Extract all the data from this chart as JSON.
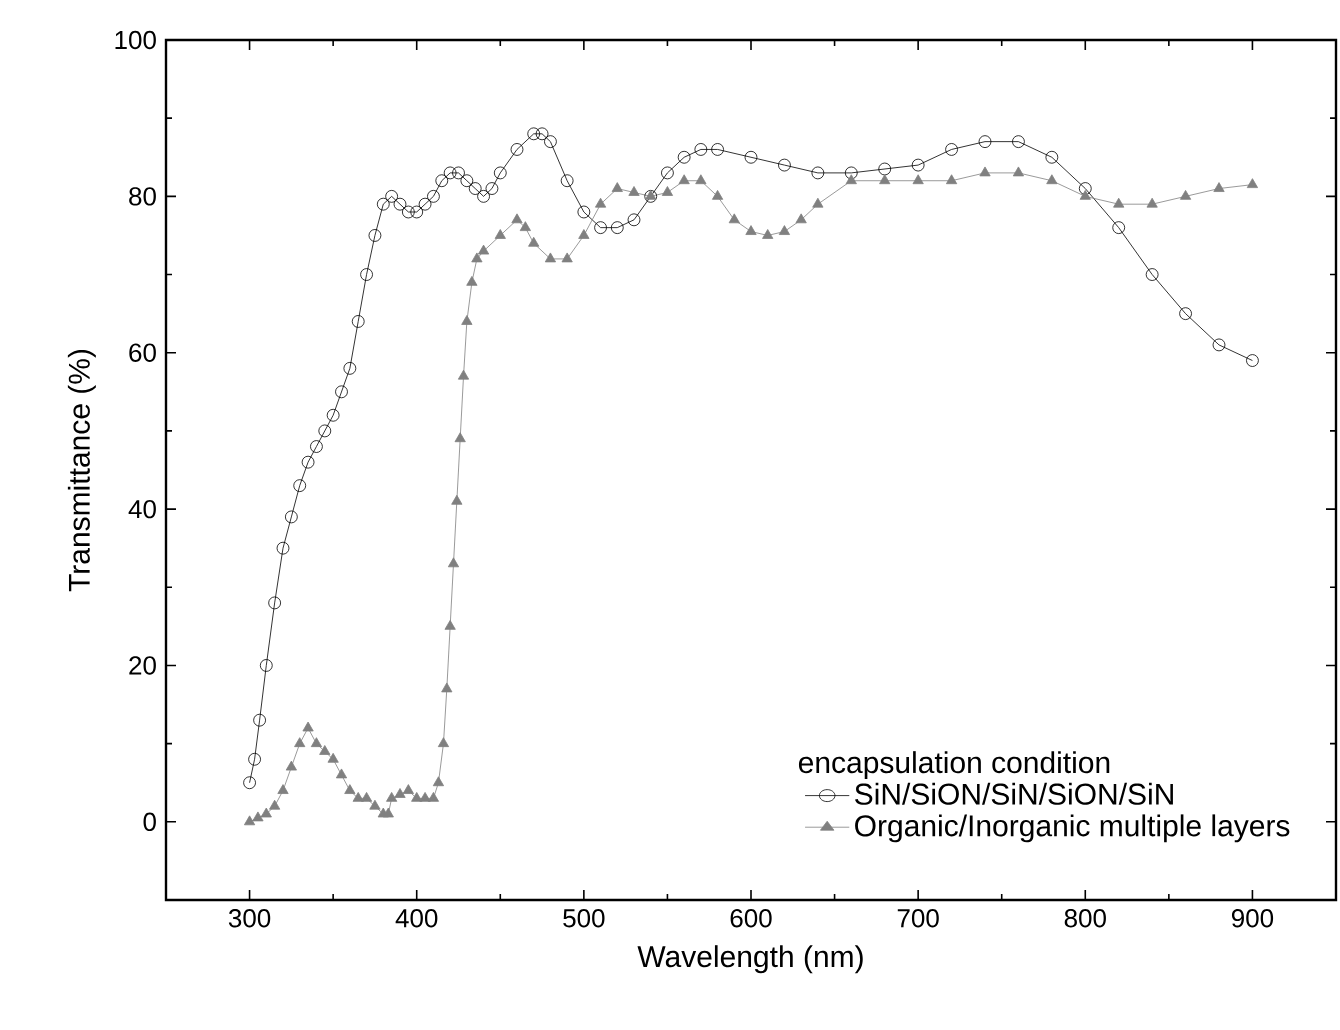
{
  "chart_data": {
    "type": "line",
    "xlabel": "Wavelength (nm)",
    "ylabel": "Transmittance (%)",
    "legend_title": "encapsulation condition",
    "legend": "bottom right",
    "grid": false,
    "xlim": [
      250,
      950
    ],
    "ylim": [
      -10,
      100
    ],
    "xticks": [
      300,
      400,
      500,
      600,
      700,
      800,
      900
    ],
    "yticks": [
      0,
      20,
      40,
      60,
      80,
      100
    ],
    "series": [
      {
        "name": "SiN/SiON/SiN/SiON/SiN",
        "color": "#000000",
        "marker": "circle",
        "x": [
          300,
          303,
          306,
          310,
          315,
          320,
          325,
          330,
          335,
          340,
          345,
          350,
          355,
          360,
          365,
          370,
          375,
          380,
          385,
          390,
          395,
          400,
          405,
          410,
          415,
          420,
          425,
          430,
          435,
          440,
          445,
          450,
          460,
          470,
          475,
          480,
          490,
          500,
          510,
          520,
          530,
          540,
          550,
          560,
          570,
          580,
          600,
          620,
          640,
          660,
          680,
          700,
          720,
          740,
          760,
          780,
          800,
          820,
          840,
          860,
          880,
          900
        ],
        "values": [
          5,
          8,
          13,
          20,
          28,
          35,
          39,
          43,
          46,
          48,
          50,
          52,
          55,
          58,
          64,
          70,
          75,
          79,
          80,
          79,
          78,
          78,
          79,
          80,
          82,
          83,
          83,
          82,
          81,
          80,
          81,
          83,
          86,
          88,
          88,
          87,
          82,
          78,
          76,
          76,
          77,
          80,
          83,
          85,
          86,
          86,
          85,
          84,
          83,
          83,
          83.5,
          84,
          86,
          87,
          87,
          85,
          81,
          76,
          70,
          65,
          61,
          59
        ]
      },
      {
        "name": "Organic/Inorganic multiple layers",
        "color": "#808080",
        "marker": "triangle",
        "x": [
          300,
          305,
          310,
          315,
          320,
          325,
          330,
          335,
          340,
          345,
          350,
          355,
          360,
          365,
          370,
          375,
          380,
          383,
          385,
          390,
          395,
          400,
          405,
          410,
          413,
          416,
          418,
          420,
          422,
          424,
          426,
          428,
          430,
          433,
          436,
          440,
          450,
          460,
          465,
          470,
          480,
          490,
          500,
          510,
          520,
          530,
          540,
          550,
          560,
          570,
          580,
          590,
          600,
          610,
          620,
          630,
          640,
          660,
          680,
          700,
          720,
          740,
          760,
          780,
          800,
          820,
          840,
          860,
          880,
          900
        ],
        "values": [
          0,
          0.5,
          1,
          2,
          4,
          7,
          10,
          12,
          10,
          9,
          8,
          6,
          4,
          3,
          3,
          2,
          1,
          1,
          3,
          3.5,
          4,
          3,
          3,
          3,
          5,
          10,
          17,
          25,
          33,
          41,
          49,
          57,
          64,
          69,
          72,
          73,
          75,
          77,
          76,
          74,
          72,
          72,
          75,
          79,
          81,
          80.5,
          80,
          80.5,
          82,
          82,
          80,
          77,
          75.5,
          75,
          75.5,
          77,
          79,
          82,
          82,
          82,
          82,
          83,
          83,
          82,
          80,
          79,
          79,
          80,
          81,
          81.5
        ]
      }
    ]
  }
}
